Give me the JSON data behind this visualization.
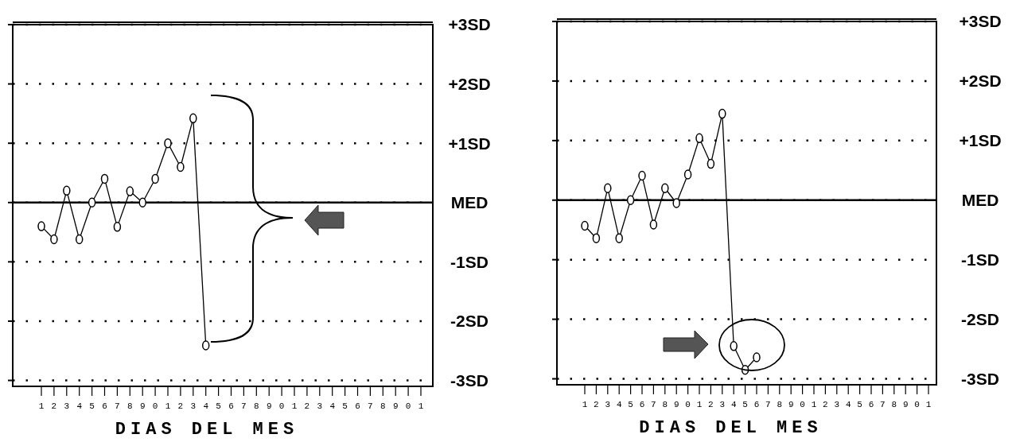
{
  "chart_data": [
    {
      "type": "line",
      "xlabel": "DIAS DEL MES",
      "categories": [
        "1",
        "2",
        "3",
        "4",
        "5",
        "6",
        "7",
        "8",
        "9",
        "0",
        "1",
        "2",
        "3",
        "4",
        "5",
        "6",
        "7",
        "8",
        "9",
        "0",
        "1",
        "2",
        "3",
        "4",
        "5",
        "6",
        "7",
        "8",
        "9",
        "0",
        "1"
      ],
      "series": [
        {
          "color": "#000000",
          "values": [
            -0.4,
            -0.62,
            0.2,
            -0.62,
            0,
            0.4,
            -0.41,
            0.19,
            0,
            0.4,
            1.0,
            0.6,
            1.42,
            -2.41,
            null,
            null,
            null,
            null,
            null,
            null,
            null,
            null,
            null,
            null,
            null,
            null,
            null,
            null,
            null,
            null,
            null
          ]
        }
      ],
      "ylim": [
        -3.1,
        3
      ],
      "yticks": [
        {
          "value": 3,
          "label": "+3SD"
        },
        {
          "value": 2,
          "label": "+2SD"
        },
        {
          "value": 1,
          "label": "+1SD"
        },
        {
          "value": 0,
          "label": "MED"
        },
        {
          "value": -1,
          "label": "-1SD"
        },
        {
          "value": -2,
          "label": "-2SD"
        },
        {
          "value": -3,
          "label": "-3SD"
        }
      ],
      "grid": "y",
      "marker": "circle",
      "line_style": "solid",
      "ref_lines": [
        {
          "axis": "y",
          "value": 0,
          "line_style": "solid"
        }
      ]
    },
    {
      "type": "line",
      "xlabel": "DIAS DEL MES",
      "categories": [
        "1",
        "2",
        "3",
        "4",
        "5",
        "6",
        "7",
        "8",
        "9",
        "0",
        "1",
        "2",
        "3",
        "4",
        "5",
        "6",
        "7",
        "8",
        "9",
        "0",
        "1",
        "2",
        "3",
        "4",
        "5",
        "6",
        "7",
        "8",
        "9",
        "0",
        "1"
      ],
      "series": [
        {
          "color": "#000000",
          "values": [
            -0.43,
            -0.64,
            0.2,
            -0.64,
            0,
            0.41,
            -0.41,
            0.2,
            -0.05,
            0.43,
            1.04,
            0.61,
            1.45,
            -2.45,
            -2.85,
            -2.64,
            null,
            null,
            null,
            null,
            null,
            null,
            null,
            null,
            null,
            null,
            null,
            null,
            null,
            null,
            null
          ]
        }
      ],
      "ylim": [
        -3.1,
        3
      ],
      "yticks": [
        {
          "value": 3,
          "label": "+3SD"
        },
        {
          "value": 2,
          "label": "+2SD"
        },
        {
          "value": 1,
          "label": "+1SD"
        },
        {
          "value": 0,
          "label": "MED"
        },
        {
          "value": -1,
          "label": "-1SD"
        },
        {
          "value": -2,
          "label": "-2SD"
        },
        {
          "value": -3,
          "label": "-3SD"
        }
      ],
      "grid": "y",
      "marker": "circle",
      "line_style": "solid",
      "ref_lines": [
        {
          "axis": "y",
          "value": 0,
          "line_style": "solid"
        }
      ]
    }
  ]
}
